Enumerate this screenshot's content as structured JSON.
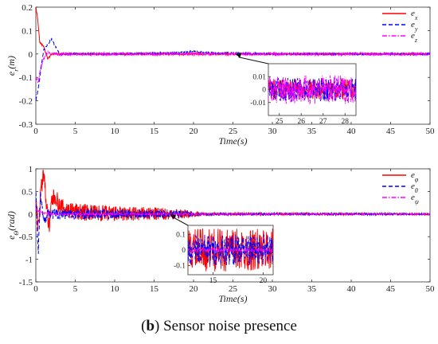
{
  "caption": {
    "prefix": "(",
    "bold": "b",
    "suffix": ") Sensor noise presence"
  },
  "chart_data": [
    {
      "type": "line",
      "xlabel": "Time(s)",
      "ylabel": "e_r(m)",
      "xlim": [
        0,
        50
      ],
      "ylim": [
        -0.3,
        0.2
      ],
      "xticks": [
        0,
        5,
        10,
        15,
        20,
        25,
        30,
        35,
        40,
        45,
        50
      ],
      "yticks": [
        -0.3,
        -0.2,
        -0.1,
        0,
        0.1,
        0.2
      ],
      "legend_position": "top-right",
      "series": [
        {
          "name": "e_x",
          "color": "#ff0000",
          "dash": "solid",
          "x": [
            0,
            0.2,
            0.5,
            1,
            1.5,
            2,
            3,
            5,
            10,
            20,
            30,
            40,
            50
          ],
          "y": [
            0.2,
            0.16,
            0.05,
            0.03,
            -0.02,
            0.0,
            0.0,
            0.0,
            0.0,
            0.0,
            0.0,
            0.0,
            0.0
          ],
          "noise": 0.004
        },
        {
          "name": "e_y",
          "color": "#0000ff",
          "dash": "dashed",
          "x": [
            0,
            0.3,
            0.7,
            1,
            1.5,
            2,
            2.5,
            3,
            5,
            10,
            18,
            20,
            22,
            30,
            40,
            50
          ],
          "y": [
            -0.2,
            -0.15,
            -0.05,
            0.02,
            0.04,
            0.065,
            0.03,
            0.0,
            0.0,
            0.0,
            0.005,
            0.01,
            0.005,
            0.0,
            0.0,
            0.0
          ],
          "noise": 0.004
        },
        {
          "name": "e_z",
          "color": "#ff00ff",
          "dash": "dashdot",
          "x": [
            0,
            0.3,
            0.6,
            1,
            1.5,
            2,
            3,
            5,
            10,
            20,
            30,
            40,
            50
          ],
          "y": [
            -0.1,
            -0.12,
            -0.06,
            -0.02,
            0.01,
            0.0,
            0.0,
            0.0,
            0.0,
            0.0,
            0.0,
            0.0,
            0.0
          ],
          "noise": 0.006
        }
      ],
      "inset": {
        "xlim": [
          24.5,
          28.5
        ],
        "ylim": [
          -0.02,
          0.02
        ],
        "xticks": [
          25,
          26,
          27,
          28
        ],
        "yticks": [
          -0.01,
          0,
          0.01
        ],
        "yticklabels": [
          "-0.01",
          "0",
          "0.01"
        ],
        "series_amplitude": [
          0.008,
          0.009,
          0.011
        ],
        "arrow_to": [
          25.3,
          0.0
        ]
      }
    },
    {
      "type": "line",
      "xlabel": "Time(s)",
      "ylabel": "e_Θ(rad)",
      "xlim": [
        0,
        50
      ],
      "ylim": [
        -1.5,
        1
      ],
      "xticks": [
        0,
        5,
        10,
        15,
        20,
        25,
        30,
        35,
        40,
        45,
        50
      ],
      "yticks": [
        -1.5,
        -1,
        -0.5,
        0,
        0.5,
        1
      ],
      "legend_position": "top-right",
      "series": [
        {
          "name": "e_φ",
          "color": "#ff0000",
          "dash": "solid",
          "x": [
            0,
            0.3,
            0.6,
            1,
            1.3,
            1.7,
            2,
            2.5,
            3,
            5,
            10,
            15,
            18,
            20,
            25,
            30,
            40,
            50
          ],
          "y": [
            0.3,
            -0.3,
            0.5,
            0.9,
            0.3,
            -0.35,
            0.3,
            0.4,
            0.15,
            0.05,
            0.0,
            0.0,
            0.0,
            0.0,
            0.0,
            0.0,
            0.0,
            0.0
          ],
          "noise": [
            [
              0,
              0.2
            ],
            [
              5,
              0.2
            ],
            [
              15,
              0.15
            ],
            [
              19,
              0.1
            ],
            [
              21,
              0.03
            ],
            [
              50,
              0.02
            ]
          ]
        },
        {
          "name": "e_θ",
          "color": "#0000ff",
          "dash": "dashed",
          "x": [
            0,
            0.3,
            0.6,
            1,
            1.5,
            2,
            3,
            5,
            10,
            20,
            30,
            40,
            50
          ],
          "y": [
            0.5,
            -0.9,
            0.4,
            -0.2,
            0.05,
            0.0,
            0.0,
            0.0,
            0.0,
            0.0,
            0.0,
            0.0,
            0.0
          ],
          "noise": [
            [
              0,
              0.12
            ],
            [
              5,
              0.12
            ],
            [
              18,
              0.08
            ],
            [
              21,
              0.03
            ],
            [
              50,
              0.02
            ]
          ]
        },
        {
          "name": "e_ψ",
          "color": "#ff00ff",
          "dash": "dashdot",
          "x": [
            0,
            0.5,
            1,
            2,
            5,
            10,
            20,
            30,
            40,
            50
          ],
          "y": [
            0.1,
            0.05,
            0.02,
            0.0,
            0.0,
            0.0,
            0.0,
            0.0,
            0.0,
            0.0
          ],
          "noise": [
            [
              0,
              0.02
            ],
            [
              50,
              0.01
            ]
          ]
        }
      ],
      "inset": {
        "xlim": [
          12.5,
          21
        ],
        "ylim": [
          -0.16,
          0.16
        ],
        "xticks": [
          15,
          20
        ],
        "yticks": [
          -0.1,
          0,
          0.1
        ],
        "yticklabels": [
          "-0.1",
          "0",
          "0.1"
        ],
        "series_amplitude": [
          0.14,
          0.1,
          0.01
        ],
        "arrow_to": [
          17.0,
          0.0
        ]
      }
    }
  ]
}
